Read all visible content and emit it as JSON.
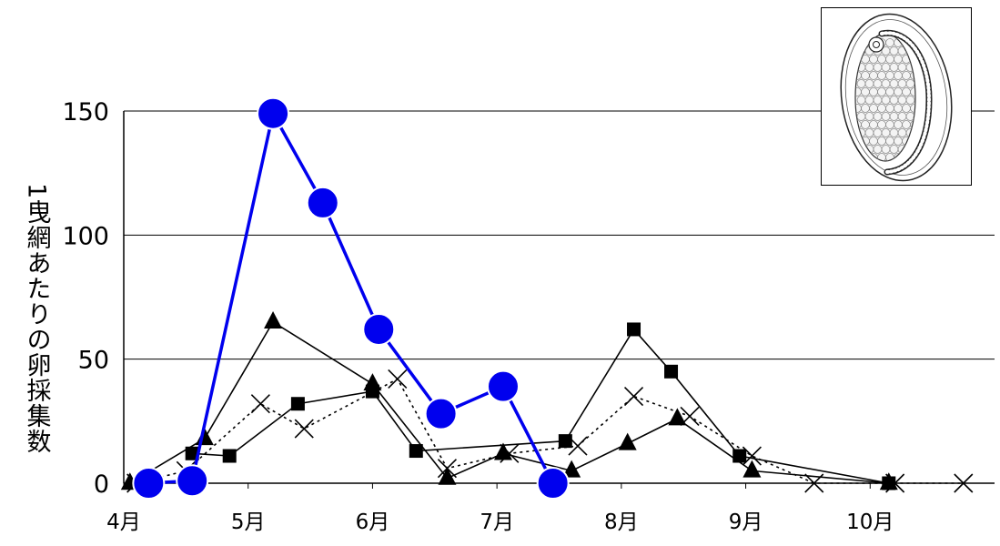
{
  "chart_data": {
    "type": "line",
    "title": "",
    "xlabel": "",
    "ylabel": "1曳網あたりの卵採集数",
    "ylim": [
      0,
      150
    ],
    "yticks": [
      0,
      50,
      100,
      150
    ],
    "x_tick_labels": [
      {
        "label": "4月",
        "x": 4.0
      },
      {
        "label": "5月",
        "x": 5.0
      },
      {
        "label": "6月",
        "x": 6.0
      },
      {
        "label": "7月",
        "x": 7.0
      },
      {
        "label": "8月",
        "x": 8.0
      },
      {
        "label": "9月",
        "x": 9.0
      },
      {
        "label": "10月",
        "x": 10.0
      }
    ],
    "xlim": [
      4.0,
      11.0
    ],
    "grid": "horizontal",
    "legend": "none",
    "series": [
      {
        "marker": "circle",
        "color": "#0000ee",
        "line": "solid-thick",
        "x": [
          4.2,
          4.55,
          5.2,
          5.6,
          6.05,
          6.55,
          7.05,
          7.45
        ],
        "values": [
          0,
          1,
          149,
          113,
          62,
          28,
          39,
          0
        ]
      },
      {
        "marker": "triangle",
        "color": "#000000",
        "line": "solid",
        "x": [
          4.05,
          4.65,
          5.2,
          6.0,
          6.6,
          7.05,
          7.6,
          8.05,
          8.45,
          9.05,
          10.15
        ],
        "values": [
          0,
          18,
          65,
          40,
          2,
          12,
          5,
          16,
          26,
          5,
          0
        ]
      },
      {
        "marker": "square",
        "color": "#000000",
        "line": "solid",
        "x": [
          4.55,
          4.85,
          5.4,
          6.0,
          6.35,
          7.55,
          8.1,
          8.4,
          8.95,
          10.15
        ],
        "values": [
          12,
          11,
          32,
          37,
          13,
          17,
          62,
          45,
          11,
          0
        ]
      },
      {
        "marker": "x",
        "color": "#000000",
        "line": "dotted",
        "x": [
          4.1,
          4.5,
          5.1,
          5.45,
          6.2,
          6.6,
          7.1,
          7.65,
          8.1,
          8.55,
          9.05,
          9.55,
          10.2,
          10.75
        ],
        "values": [
          0,
          5,
          32,
          22,
          42,
          6,
          12,
          15,
          35,
          27,
          11,
          0,
          0,
          0
        ]
      }
    ]
  },
  "inset": {
    "icon": "fish-egg-illustration"
  }
}
